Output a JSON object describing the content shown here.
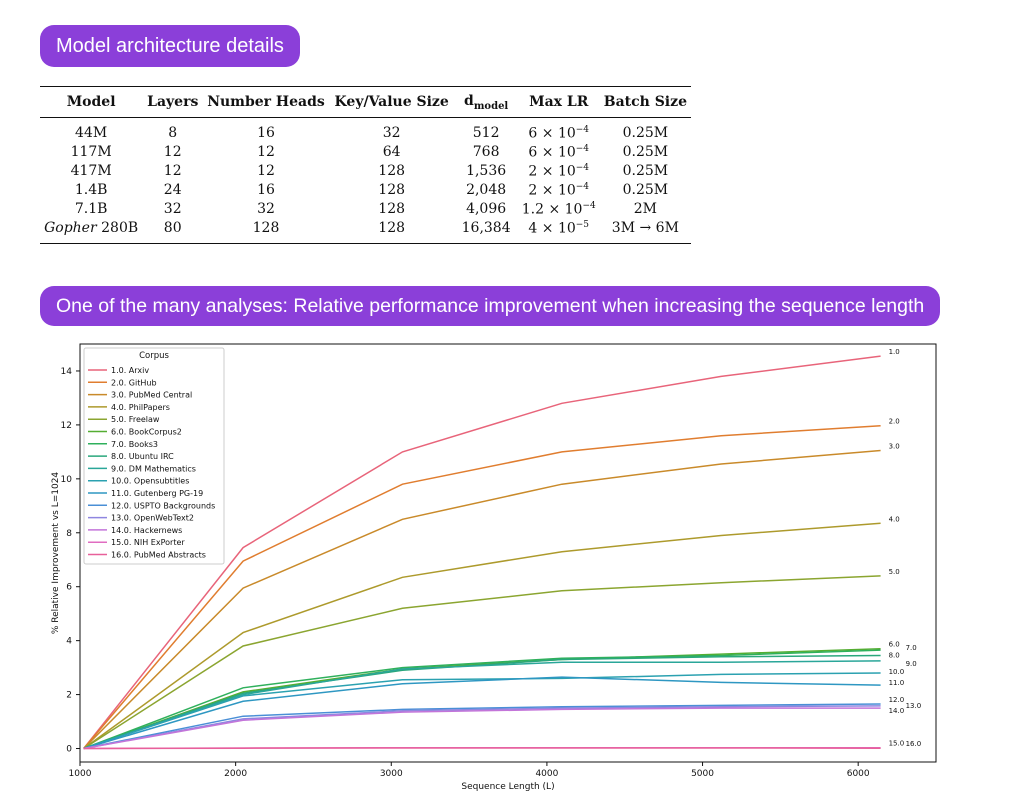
{
  "header1": "Model architecture details",
  "header2": "One of the many analyses: Relative performance improvement when increasing the sequence length",
  "table": {
    "columns": [
      "Model",
      "Layers",
      "Number Heads",
      "Key/Value Size",
      "d",
      "Max LR",
      "Batch Size"
    ],
    "dmodel_sub": "model",
    "rows": [
      {
        "model": "44M",
        "model_italic": "",
        "layers": "8",
        "heads": "16",
        "kv": "32",
        "dmodel": "512",
        "lr_base": "6 × 10",
        "lr_exp": "−4",
        "batch": "0.25M"
      },
      {
        "model": "117M",
        "model_italic": "",
        "layers": "12",
        "heads": "12",
        "kv": "64",
        "dmodel": "768",
        "lr_base": "6 × 10",
        "lr_exp": "−4",
        "batch": "0.25M"
      },
      {
        "model": "417M",
        "model_italic": "",
        "layers": "12",
        "heads": "12",
        "kv": "128",
        "dmodel": "1,536",
        "lr_base": "2 × 10",
        "lr_exp": "−4",
        "batch": "0.25M"
      },
      {
        "model": "1.4B",
        "model_italic": "",
        "layers": "24",
        "heads": "16",
        "kv": "128",
        "dmodel": "2,048",
        "lr_base": "2 × 10",
        "lr_exp": "−4",
        "batch": "0.25M"
      },
      {
        "model": "7.1B",
        "model_italic": "",
        "layers": "32",
        "heads": "32",
        "kv": "128",
        "dmodel": "4,096",
        "lr_base": "1.2 × 10",
        "lr_exp": "−4",
        "batch": "2M"
      },
      {
        "model": "280B",
        "model_italic": "Gopher",
        "layers": "80",
        "heads": "128",
        "kv": "128",
        "dmodel": "16,384",
        "lr_base": "4 × 10",
        "lr_exp": "−5",
        "batch": "3M → 6M"
      }
    ]
  },
  "chart_data": {
    "type": "line",
    "title": "",
    "xlabel": "Sequence Length (L)",
    "ylabel": "% Relative Improvement vs L=1024",
    "xlim": [
      1000,
      6500
    ],
    "ylim": [
      -0.5,
      15
    ],
    "x_ticks": [
      1000,
      2000,
      3000,
      4000,
      5000,
      6000
    ],
    "y_ticks": [
      0,
      2,
      4,
      6,
      8,
      10,
      12,
      14
    ],
    "legend_title": "Corpus",
    "legend_position": "upper-left",
    "x": [
      1024,
      2048,
      3072,
      4096,
      5120,
      6144
    ],
    "series": [
      {
        "name": "1.0. Arxiv",
        "end_label": "1.0",
        "color": "#e8647a",
        "values": [
          0,
          7.45,
          11.0,
          12.8,
          13.8,
          14.55
        ]
      },
      {
        "name": "2.0. GitHub",
        "end_label": "2.0",
        "color": "#e07d2f",
        "values": [
          0,
          6.95,
          9.8,
          11.0,
          11.6,
          11.97
        ]
      },
      {
        "name": "3.0. PubMed Central",
        "end_label": "3.0",
        "color": "#c98a2a",
        "values": [
          0,
          5.95,
          8.5,
          9.8,
          10.55,
          11.05
        ]
      },
      {
        "name": "4.0. PhilPapers",
        "end_label": "4.0",
        "color": "#ad9a2c",
        "values": [
          0,
          4.3,
          6.35,
          7.3,
          7.9,
          8.35
        ]
      },
      {
        "name": "5.0. Freelaw",
        "end_label": "5.0",
        "color": "#8ba530",
        "values": [
          0,
          3.8,
          5.2,
          5.85,
          6.15,
          6.4
        ]
      },
      {
        "name": "6.0. BookCorpus2",
        "end_label": "6.0",
        "color": "#55ad32",
        "values": [
          0,
          2.1,
          2.95,
          3.3,
          3.5,
          3.7
        ]
      },
      {
        "name": "7.0. Books3",
        "end_label": "7.0",
        "color": "#2fb05c",
        "values": [
          0,
          2.25,
          3.0,
          3.35,
          3.45,
          3.65
        ]
      },
      {
        "name": "8.0. Ubuntu IRC",
        "end_label": "8.0",
        "color": "#2aa77c",
        "values": [
          0,
          2.05,
          2.9,
          3.3,
          3.4,
          3.45
        ]
      },
      {
        "name": "9.0. DM Mathematics",
        "end_label": "9.0",
        "color": "#2aa699",
        "values": [
          0,
          2.0,
          2.95,
          3.2,
          3.2,
          3.25
        ]
      },
      {
        "name": "10.0. Opensubtitles",
        "end_label": "10.0",
        "color": "#2ba1b0",
        "values": [
          0,
          1.95,
          2.55,
          2.6,
          2.75,
          2.8
        ]
      },
      {
        "name": "11.0. Gutenberg PG-19",
        "end_label": "11.0",
        "color": "#2e97c2",
        "values": [
          0,
          1.75,
          2.4,
          2.65,
          2.45,
          2.35
        ]
      },
      {
        "name": "12.0. USPTO Backgrounds",
        "end_label": "12.0",
        "color": "#4a8fd6",
        "values": [
          0,
          1.2,
          1.45,
          1.55,
          1.6,
          1.65
        ]
      },
      {
        "name": "13.0. OpenWebText2",
        "end_label": "13.0",
        "color": "#8f86e0",
        "values": [
          0,
          1.1,
          1.4,
          1.5,
          1.55,
          1.58
        ]
      },
      {
        "name": "14.0. Hackernews",
        "end_label": "14.0",
        "color": "#c375d9",
        "values": [
          0,
          1.05,
          1.35,
          1.45,
          1.5,
          1.5
        ]
      },
      {
        "name": "15.0. NIH ExPorter",
        "end_label": "15.0",
        "color": "#e06cc1",
        "values": [
          0,
          0.02,
          0.03,
          0.03,
          0.03,
          0.03
        ]
      },
      {
        "name": "16.0. PubMed Abstracts",
        "end_label": "16.0",
        "color": "#e8609a",
        "values": [
          0,
          0.01,
          0.02,
          0.02,
          0.02,
          0.01
        ]
      }
    ]
  }
}
